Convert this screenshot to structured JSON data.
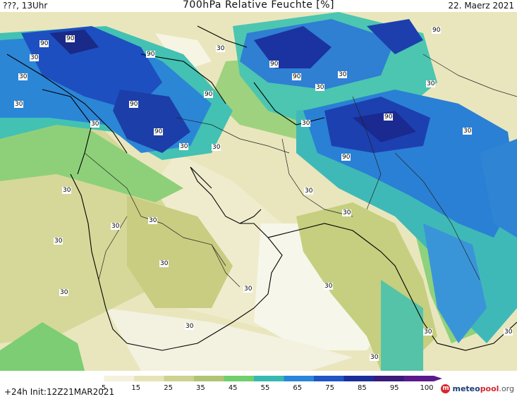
{
  "header": {
    "left_text": "???, 13Uhr",
    "title": "700hPa Relative Feuchte [%]",
    "right_text": "22. Maerz 2021"
  },
  "map": {
    "contour_labels": [
      "90",
      "90",
      "90",
      "90",
      "90",
      "90",
      "90",
      "90",
      "90",
      "90",
      "90",
      "30",
      "30",
      "30",
      "30",
      "30",
      "30",
      "30",
      "30",
      "30",
      "30",
      "30",
      "30",
      "30",
      "30",
      "30",
      "30",
      "30",
      "30",
      "30",
      "30",
      "30",
      "30",
      "30",
      "30",
      "30",
      "30",
      "30"
    ]
  },
  "colorbar": {
    "ticks": [
      "5",
      "15",
      "25",
      "35",
      "45",
      "55",
      "65",
      "75",
      "85",
      "95",
      "100"
    ],
    "colors": [
      "#ffffff",
      "#f4f1dc",
      "#e6e4b7",
      "#ccd290",
      "#b0c474",
      "#6fcf6c",
      "#35b9b0",
      "#2a86d8",
      "#1f55c4",
      "#1a2e9a",
      "#3a1a7a",
      "#5b1a8c"
    ]
  },
  "footer": {
    "init_text": "+24h  Init:12Z21MAR2021",
    "logo_brand": "meteo",
    "logo_brand_2": "pool",
    "logo_suffix": ".org"
  }
}
